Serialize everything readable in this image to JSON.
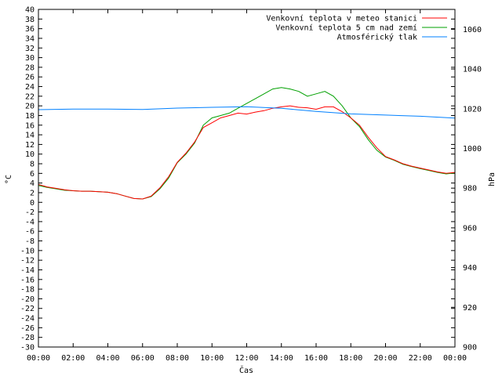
{
  "chart_data": {
    "type": "line",
    "xlabel": "Čas",
    "ylabel": "°C",
    "y2label": "hPa",
    "ylim": [
      -30,
      40
    ],
    "y2lim": [
      900,
      1070
    ],
    "xlim": [
      "00:00",
      "24:00"
    ],
    "grid": false,
    "legend_position": "top-right",
    "x_ticks": [
      "00:00",
      "02:00",
      "04:00",
      "06:00",
      "08:00",
      "10:00",
      "12:00",
      "14:00",
      "16:00",
      "18:00",
      "20:00",
      "22:00",
      "00:00"
    ],
    "y_ticks": [
      -30,
      -28,
      -26,
      -24,
      -22,
      -20,
      -18,
      -16,
      -14,
      -12,
      -10,
      -8,
      -6,
      -4,
      -2,
      0,
      2,
      4,
      6,
      8,
      10,
      12,
      14,
      16,
      18,
      20,
      22,
      24,
      26,
      28,
      30,
      32,
      34,
      36,
      38,
      40
    ],
    "y2_ticks": [
      900,
      920,
      940,
      960,
      980,
      1000,
      1020,
      1040,
      1060
    ],
    "series": [
      {
        "name": "Venkovní teplota v meteo stanici",
        "color": "#ff0000",
        "axis": "left",
        "x_hours": [
          0,
          0.5,
          1,
          1.5,
          2,
          2.5,
          3,
          3.5,
          4,
          4.5,
          5,
          5.5,
          6,
          6.5,
          7,
          7.5,
          8,
          8.5,
          9,
          9.5,
          10,
          10.5,
          11,
          11.5,
          12,
          12.5,
          13,
          13.5,
          14,
          14.5,
          15,
          15.5,
          16,
          16.5,
          17,
          17.5,
          18,
          18.5,
          19,
          19.5,
          20,
          20.5,
          21,
          21.5,
          22,
          22.5,
          23,
          23.5,
          24
        ],
        "values": [
          3.7,
          3.2,
          2.9,
          2.6,
          2.4,
          2.3,
          2.3,
          2.2,
          2.1,
          1.8,
          1.3,
          0.8,
          0.7,
          1.3,
          3.0,
          5.3,
          8.3,
          10.2,
          12.5,
          15.5,
          16.5,
          17.5,
          18.0,
          18.5,
          18.3,
          18.7,
          19.0,
          19.5,
          19.8,
          20.0,
          19.7,
          19.6,
          19.3,
          19.8,
          19.8,
          18.8,
          17.5,
          16.0,
          13.5,
          11.3,
          9.5,
          8.8,
          8.0,
          7.5,
          7.1,
          6.7,
          6.3,
          6.0,
          6.2
        ]
      },
      {
        "name": "Venkovní teplota 5 cm nad zemí",
        "color": "#00a000",
        "axis": "left",
        "x_hours": [
          0,
          0.5,
          1,
          1.5,
          2,
          2.5,
          3,
          3.5,
          4,
          4.5,
          5,
          5.5,
          6,
          6.5,
          7,
          7.5,
          8,
          8.5,
          9,
          9.5,
          10,
          10.5,
          11,
          11.5,
          12,
          12.5,
          13,
          13.5,
          14,
          14.5,
          15,
          15.5,
          16,
          16.5,
          17,
          17.5,
          18,
          18.5,
          19,
          19.5,
          20,
          20.5,
          21,
          21.5,
          22,
          22.5,
          23,
          23.5,
          24
        ],
        "values": [
          3.5,
          3.1,
          2.8,
          2.5,
          2.4,
          2.3,
          2.3,
          2.2,
          2.1,
          1.8,
          1.3,
          0.8,
          0.7,
          1.2,
          2.8,
          5.0,
          8.2,
          10.0,
          12.3,
          16.0,
          17.5,
          18.0,
          18.5,
          19.5,
          20.5,
          21.5,
          22.5,
          23.5,
          23.8,
          23.5,
          23.0,
          22.0,
          22.5,
          23.0,
          22.0,
          20.0,
          17.5,
          15.7,
          13.0,
          10.8,
          9.4,
          8.7,
          7.9,
          7.4,
          7.0,
          6.6,
          6.2,
          5.9,
          6.1
        ]
      },
      {
        "name": "Atmosférický tlak",
        "color": "#0080ff",
        "axis": "right",
        "x_hours": [
          0,
          2,
          4,
          6,
          8,
          10,
          12,
          14,
          16,
          18,
          20,
          22,
          24
        ],
        "values": [
          1019.5,
          1019.8,
          1019.8,
          1019.6,
          1020.3,
          1020.7,
          1021.0,
          1020.2,
          1018.6,
          1017.4,
          1016.8,
          1016.2,
          1015.3
        ]
      }
    ]
  }
}
